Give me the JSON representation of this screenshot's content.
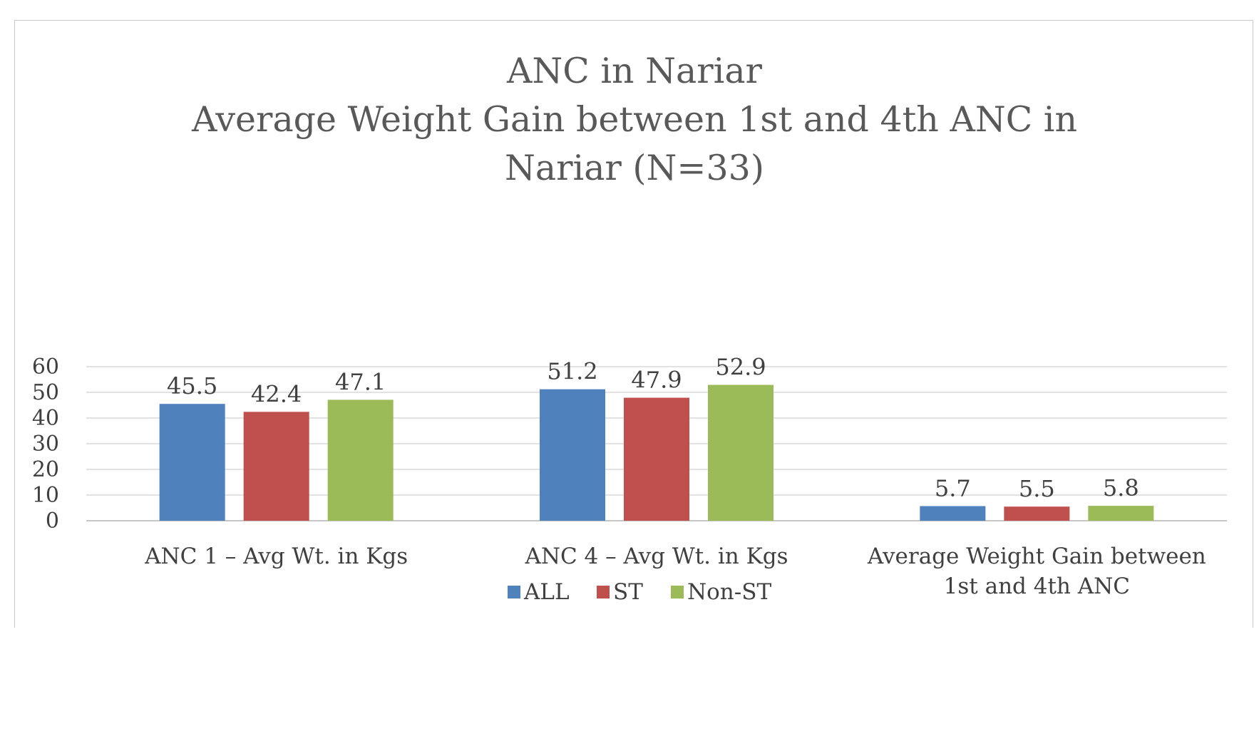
{
  "chart_data": {
    "type": "bar",
    "title_lines": [
      "ANC in Nariar",
      "Average Weight Gain between 1st and 4th ANC in",
      "Nariar (N=33)"
    ],
    "categories": [
      [
        "ANC 1 – Avg Wt. in Kgs"
      ],
      [
        "ANC 4 – Avg Wt. in Kgs"
      ],
      [
        "Average Weight Gain between",
        "1st and 4th ANC"
      ]
    ],
    "series": [
      {
        "name": "ALL",
        "color": "#4F81BD",
        "values": [
          45.5,
          51.2,
          5.7
        ]
      },
      {
        "name": "ST",
        "color": "#C0504D",
        "values": [
          42.4,
          47.9,
          5.5
        ]
      },
      {
        "name": "Non-ST",
        "color": "#9BBB59",
        "values": [
          47.1,
          52.9,
          5.8
        ]
      }
    ],
    "data_labels": [
      [
        "45.5",
        "51.2",
        "5.7"
      ],
      [
        "42.4",
        "47.9",
        "5.5"
      ],
      [
        "47.1",
        "52.9",
        "5.8"
      ]
    ],
    "y_ticks": [
      "0",
      "10",
      "20",
      "30",
      "40",
      "50",
      "60"
    ],
    "ylim": [
      0,
      60
    ],
    "grid": true,
    "legend_position": "bottom",
    "xlabel": "",
    "ylabel": ""
  }
}
